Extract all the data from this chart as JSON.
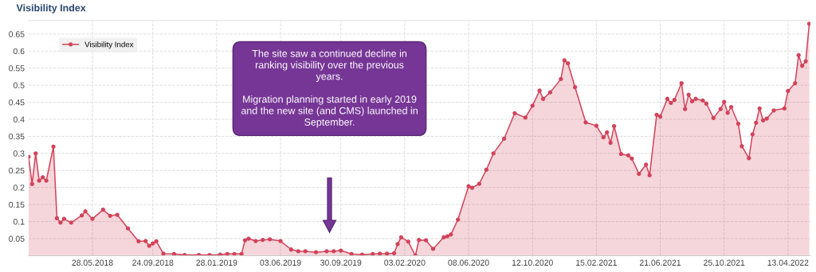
{
  "chart_data": {
    "type": "area",
    "title": "Visibility Index",
    "x": [
      "2018-01-22",
      "2018-01-29",
      "2018-02-05",
      "2018-02-12",
      "2018-02-19",
      "2018-02-26",
      "2018-03-12",
      "2018-03-19",
      "2018-03-26",
      "2018-04-02",
      "2018-04-16",
      "2018-05-07",
      "2018-05-14",
      "2018-05-28",
      "2018-06-18",
      "2018-07-02",
      "2018-07-16",
      "2018-08-06",
      "2018-08-27",
      "2018-09-10",
      "2018-09-17",
      "2018-09-24",
      "2018-10-01",
      "2018-10-15",
      "2018-11-05",
      "2018-11-26",
      "2018-12-24",
      "2019-01-14",
      "2019-02-04",
      "2019-02-18",
      "2019-03-04",
      "2019-03-18",
      "2019-03-25",
      "2019-04-01",
      "2019-04-15",
      "2019-04-29",
      "2019-05-13",
      "2019-06-03",
      "2019-06-24",
      "2019-07-08",
      "2019-07-22",
      "2019-08-12",
      "2019-09-02",
      "2019-09-16",
      "2019-09-30",
      "2019-10-21",
      "2019-11-11",
      "2019-12-02",
      "2019-12-16",
      "2019-12-30",
      "2020-01-13",
      "2020-01-20",
      "2020-01-27",
      "2020-02-10",
      "2020-02-24",
      "2020-03-02",
      "2020-03-16",
      "2020-03-30",
      "2020-04-20",
      "2020-04-27",
      "2020-05-04",
      "2020-05-18",
      "2020-06-08",
      "2020-06-15",
      "2020-06-29",
      "2020-07-13",
      "2020-07-27",
      "2020-08-17",
      "2020-09-07",
      "2020-09-28",
      "2020-10-12",
      "2020-10-26",
      "2020-11-02",
      "2020-11-16",
      "2020-12-07",
      "2020-12-14",
      "2020-12-21",
      "2021-01-04",
      "2021-01-25",
      "2021-02-15",
      "2021-03-01",
      "2021-03-08",
      "2021-03-15",
      "2021-03-22",
      "2021-04-05",
      "2021-04-19",
      "2021-04-26",
      "2021-05-10",
      "2021-05-24",
      "2021-05-31",
      "2021-06-14",
      "2021-06-21",
      "2021-07-05",
      "2021-07-12",
      "2021-07-19",
      "2021-08-02",
      "2021-08-09",
      "2021-08-16",
      "2021-08-23",
      "2021-08-30",
      "2021-09-13",
      "2021-09-20",
      "2021-10-04",
      "2021-10-18",
      "2021-10-25",
      "2021-11-01",
      "2021-11-08",
      "2021-11-22",
      "2021-11-29",
      "2021-12-13",
      "2021-12-20",
      "2021-12-27",
      "2022-01-03",
      "2022-01-10",
      "2022-01-17",
      "2022-01-31",
      "2022-02-21",
      "2022-02-28",
      "2022-03-14",
      "2022-03-21",
      "2022-03-28",
      "2022-04-04",
      "2022-04-11"
    ],
    "series": [
      {
        "name": "Visibility Index",
        "color": "#d2435a",
        "values": [
          0.29,
          0.21,
          0.3,
          0.22,
          0.23,
          0.22,
          0.32,
          0.11,
          0.097,
          0.108,
          0.097,
          0.118,
          0.13,
          0.108,
          0.135,
          0.117,
          0.12,
          0.08,
          0.042,
          0.043,
          0.029,
          0.036,
          0.042,
          0.006,
          0.005,
          0.002,
          0.002,
          0.002,
          0.003,
          0.005,
          0.005,
          0.005,
          0.045,
          0.05,
          0.043,
          0.046,
          0.048,
          0.043,
          0.018,
          0.013,
          0.013,
          0.01,
          0.013,
          0.013,
          0.015,
          0.005,
          0.003,
          0.005,
          0.006,
          0.006,
          0.007,
          0.034,
          0.054,
          0.041,
          0.0,
          0.046,
          0.045,
          0.02,
          0.054,
          0.057,
          0.062,
          0.106,
          0.204,
          0.199,
          0.211,
          0.252,
          0.3,
          0.343,
          0.418,
          0.405,
          0.44,
          0.484,
          0.46,
          0.479,
          0.518,
          0.573,
          0.564,
          0.494,
          0.391,
          0.381,
          0.347,
          0.362,
          0.331,
          0.38,
          0.298,
          0.294,
          0.285,
          0.24,
          0.267,
          0.236,
          0.413,
          0.408,
          0.46,
          0.448,
          0.457,
          0.506,
          0.43,
          0.472,
          0.453,
          0.46,
          0.455,
          0.446,
          0.404,
          0.43,
          0.451,
          0.419,
          0.436,
          0.387,
          0.321,
          0.286,
          0.356,
          0.39,
          0.432,
          0.397,
          0.402,
          0.426,
          0.432,
          0.483,
          0.506,
          0.588,
          0.557,
          0.57,
          0.68
        ]
      }
    ],
    "xlim": [
      "2018-01-22",
      "2022-04-13"
    ],
    "ylim": [
      0,
      0.69
    ],
    "xticks": [
      {
        "value": "2018-05-28",
        "label": "28.05.2018"
      },
      {
        "value": "2018-09-24",
        "label": "24.09.2018"
      },
      {
        "value": "2019-01-28",
        "label": "28.01.2019"
      },
      {
        "value": "2019-06-03",
        "label": "03.06.2019"
      },
      {
        "value": "2019-09-30",
        "label": "30.09.2019"
      },
      {
        "value": "2020-02-03",
        "label": "03.02.2020"
      },
      {
        "value": "2020-06-08",
        "label": "08.06.2020"
      },
      {
        "value": "2020-10-12",
        "label": "12.10.2020"
      },
      {
        "value": "2021-02-15",
        "label": "15.02.2021"
      },
      {
        "value": "2021-06-21",
        "label": "21.06.2021"
      },
      {
        "value": "2021-10-25",
        "label": "25.10.2021"
      },
      {
        "value": "2022-02-28",
        "label": "13.04.2022"
      }
    ],
    "yticks": [
      0.05,
      0.1,
      0.15,
      0.2,
      0.25,
      0.3,
      0.35,
      0.4,
      0.45,
      0.5,
      0.55,
      0.6,
      0.65
    ],
    "grid": true,
    "marker": "circle",
    "line_style": "solid",
    "legend": "top left",
    "annotations": [
      "The site saw a continued decline in ranking visibility over the previous years.",
      "Migration planning started in early 2019 and the new site (and CMS) launched in September."
    ]
  }
}
